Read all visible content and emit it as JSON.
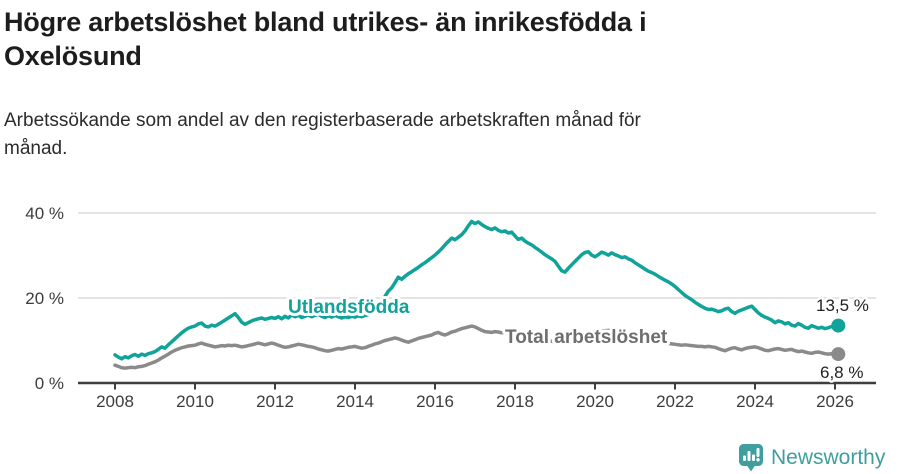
{
  "header": {
    "title_lines": [
      "Högre arbetslöshet bland utrikes- än inrikesfödda i",
      "Oxelösund"
    ],
    "subtitle_lines": [
      "Arbetssökande som andel av den registerbaserade arbetskraften månad för",
      "månad."
    ]
  },
  "colors": {
    "foreign_born": "#10a399",
    "total": "#8a8a8a",
    "total_label": "#6e6e6e",
    "grid": "#dcdcdc",
    "axis": "#3d3d3d",
    "logo_teal": "#3f9e9e"
  },
  "footer": {
    "brand": "Newsworthy",
    "logo_icon": "bar-chart-speech-bubble-icon"
  },
  "chart_data": {
    "type": "line",
    "title": "Högre arbetslöshet bland utrikes- än inrikesfödda i Oxelösund",
    "subtitle": "Arbetssökande som andel av den registerbaserade arbetskraften månad för månad.",
    "unit": "%",
    "x_start": "2008-01",
    "x_end": "2026-02",
    "points_per_year": 12,
    "ylim": [
      0,
      42
    ],
    "grid": "horizontal-only",
    "legend_position": "inline-labels",
    "y_ticks": [
      {
        "label": "0 %",
        "value": 0
      },
      {
        "label": "20 %",
        "value": 20
      },
      {
        "label": "40 %",
        "value": 40
      }
    ],
    "x_ticks": [
      {
        "label": "2008",
        "year": 2008
      },
      {
        "label": "2010",
        "year": 2010
      },
      {
        "label": "2012",
        "year": 2012
      },
      {
        "label": "2014",
        "year": 2014
      },
      {
        "label": "2016",
        "year": 2016
      },
      {
        "label": "2018",
        "year": 2018
      },
      {
        "label": "2020",
        "year": 2020
      },
      {
        "label": "2022",
        "year": 2022
      },
      {
        "label": "2024",
        "year": 2024
      },
      {
        "label": "2026",
        "year": 2026
      }
    ],
    "series": [
      {
        "name": "Utlandsfödda",
        "color": "#10a399",
        "end_label": "13,5 %",
        "end_value": 13.5,
        "values": [
          6.6,
          6.1,
          5.7,
          6.2,
          5.9,
          6.4,
          6.7,
          6.3,
          6.8,
          6.5,
          6.9,
          7.1,
          7.4,
          7.9,
          8.5,
          8.2,
          9.0,
          9.7,
          10.4,
          11.1,
          11.8,
          12.4,
          12.9,
          13.2,
          13.4,
          13.9,
          14.1,
          13.4,
          13.2,
          13.6,
          13.4,
          13.8,
          14.3,
          14.8,
          15.3,
          15.8,
          16.3,
          15.4,
          14.3,
          13.8,
          14.2,
          14.6,
          14.9,
          15.1,
          15.3,
          15.0,
          15.2,
          15.4,
          15.2,
          15.6,
          15.1,
          15.7,
          15.3,
          16.0,
          15.6,
          15.9,
          15.4,
          15.7,
          16.0,
          15.6,
          15.9,
          16.2,
          15.7,
          15.4,
          15.8,
          15.5,
          15.9,
          15.6,
          15.3,
          15.6,
          15.4,
          15.7,
          15.5,
          15.8,
          15.6,
          15.9,
          16.1,
          16.4,
          16.9,
          17.8,
          19.0,
          20.4,
          21.6,
          22.4,
          23.6,
          24.9,
          24.4,
          25.1,
          25.7,
          26.2,
          26.7,
          27.2,
          27.8,
          28.3,
          28.9,
          29.5,
          30.1,
          30.8,
          31.6,
          32.5,
          33.3,
          34.1,
          33.7,
          34.3,
          34.9,
          35.8,
          37.0,
          38.0,
          37.5,
          37.9,
          37.3,
          36.8,
          36.4,
          36.1,
          36.5,
          35.9,
          35.6,
          35.8,
          35.3,
          35.5,
          34.6,
          33.8,
          34.1,
          33.4,
          32.9,
          32.5,
          31.9,
          31.4,
          30.8,
          30.2,
          29.7,
          29.2,
          28.6,
          27.5,
          26.4,
          26.1,
          27.0,
          27.8,
          28.6,
          29.4,
          30.2,
          30.7,
          30.9,
          30.1,
          29.7,
          30.2,
          30.8,
          30.5,
          30.1,
          30.6,
          30.2,
          29.9,
          29.5,
          29.7,
          29.2,
          28.9,
          28.3,
          27.8,
          27.3,
          26.8,
          26.3,
          26.0,
          25.6,
          25.1,
          24.6,
          24.2,
          23.8,
          23.3,
          22.7,
          22.0,
          21.3,
          20.6,
          20.1,
          19.6,
          19.0,
          18.5,
          18.0,
          17.6,
          17.3,
          17.4,
          17.1,
          16.8,
          17.0,
          17.4,
          17.6,
          16.8,
          16.4,
          16.9,
          17.2,
          17.5,
          17.8,
          18.1,
          17.3,
          16.5,
          15.9,
          15.5,
          15.2,
          14.8,
          14.2,
          14.6,
          14.4,
          13.9,
          14.2,
          13.6,
          13.4,
          14.0,
          13.6,
          13.1,
          12.9,
          13.5,
          13.2,
          12.9,
          13.1,
          12.8,
          13.0,
          13.3,
          13.4,
          13.5
        ]
      },
      {
        "name": "Total arbetslöshet",
        "color": "#8a8a8a",
        "end_label": "6,8 %",
        "end_value": 6.8,
        "values": [
          4.2,
          3.9,
          3.6,
          3.5,
          3.6,
          3.7,
          3.6,
          3.8,
          3.9,
          4.1,
          4.4,
          4.7,
          5.0,
          5.4,
          5.9,
          6.3,
          6.8,
          7.3,
          7.7,
          8.0,
          8.3,
          8.5,
          8.7,
          8.8,
          8.9,
          9.2,
          9.4,
          9.1,
          8.9,
          8.7,
          8.5,
          8.6,
          8.8,
          8.7,
          8.9,
          8.8,
          8.9,
          8.7,
          8.5,
          8.6,
          8.8,
          9.0,
          9.2,
          9.4,
          9.2,
          9.0,
          9.2,
          9.4,
          9.2,
          8.9,
          8.6,
          8.4,
          8.5,
          8.7,
          8.9,
          9.1,
          9.0,
          8.8,
          8.6,
          8.5,
          8.3,
          8.0,
          7.8,
          7.6,
          7.5,
          7.7,
          7.9,
          8.1,
          8.0,
          8.2,
          8.4,
          8.5,
          8.6,
          8.4,
          8.2,
          8.3,
          8.6,
          8.9,
          9.2,
          9.4,
          9.7,
          10.0,
          10.2,
          10.4,
          10.6,
          10.4,
          10.1,
          9.8,
          9.6,
          9.9,
          10.2,
          10.5,
          10.7,
          10.9,
          11.1,
          11.3,
          11.7,
          11.9,
          11.5,
          11.3,
          11.6,
          12.0,
          12.2,
          12.5,
          12.8,
          13.0,
          13.2,
          13.4,
          13.2,
          12.8,
          12.4,
          12.1,
          12.0,
          11.9,
          12.1,
          12.0,
          11.8,
          11.9,
          11.7,
          11.6,
          11.7,
          11.5,
          11.3,
          11.1,
          10.9,
          10.7,
          10.5,
          10.3,
          10.1,
          10.0,
          9.9,
          9.8,
          9.7,
          9.5,
          9.4,
          9.5,
          9.7,
          10.0,
          10.3,
          10.6,
          10.9,
          11.1,
          11.3,
          11.5,
          11.7,
          11.9,
          12.1,
          12.3,
          12.4,
          12.2,
          12.0,
          11.9,
          11.7,
          11.6,
          11.4,
          11.3,
          11.1,
          10.9,
          10.7,
          10.5,
          10.3,
          10.1,
          9.9,
          9.7,
          9.6,
          9.4,
          9.3,
          9.2,
          9.1,
          9.0,
          8.9,
          9.0,
          8.9,
          8.8,
          8.7,
          8.6,
          8.6,
          8.5,
          8.6,
          8.5,
          8.4,
          8.1,
          7.8,
          7.6,
          7.9,
          8.2,
          8.3,
          8.0,
          7.8,
          8.1,
          8.3,
          8.4,
          8.5,
          8.3,
          8.0,
          7.7,
          7.6,
          7.8,
          8.0,
          8.1,
          7.9,
          7.7,
          7.8,
          7.9,
          7.6,
          7.4,
          7.5,
          7.3,
          7.1,
          7.0,
          7.2,
          7.3,
          7.1,
          6.9,
          6.8,
          6.9,
          7.0,
          6.8
        ]
      }
    ]
  }
}
